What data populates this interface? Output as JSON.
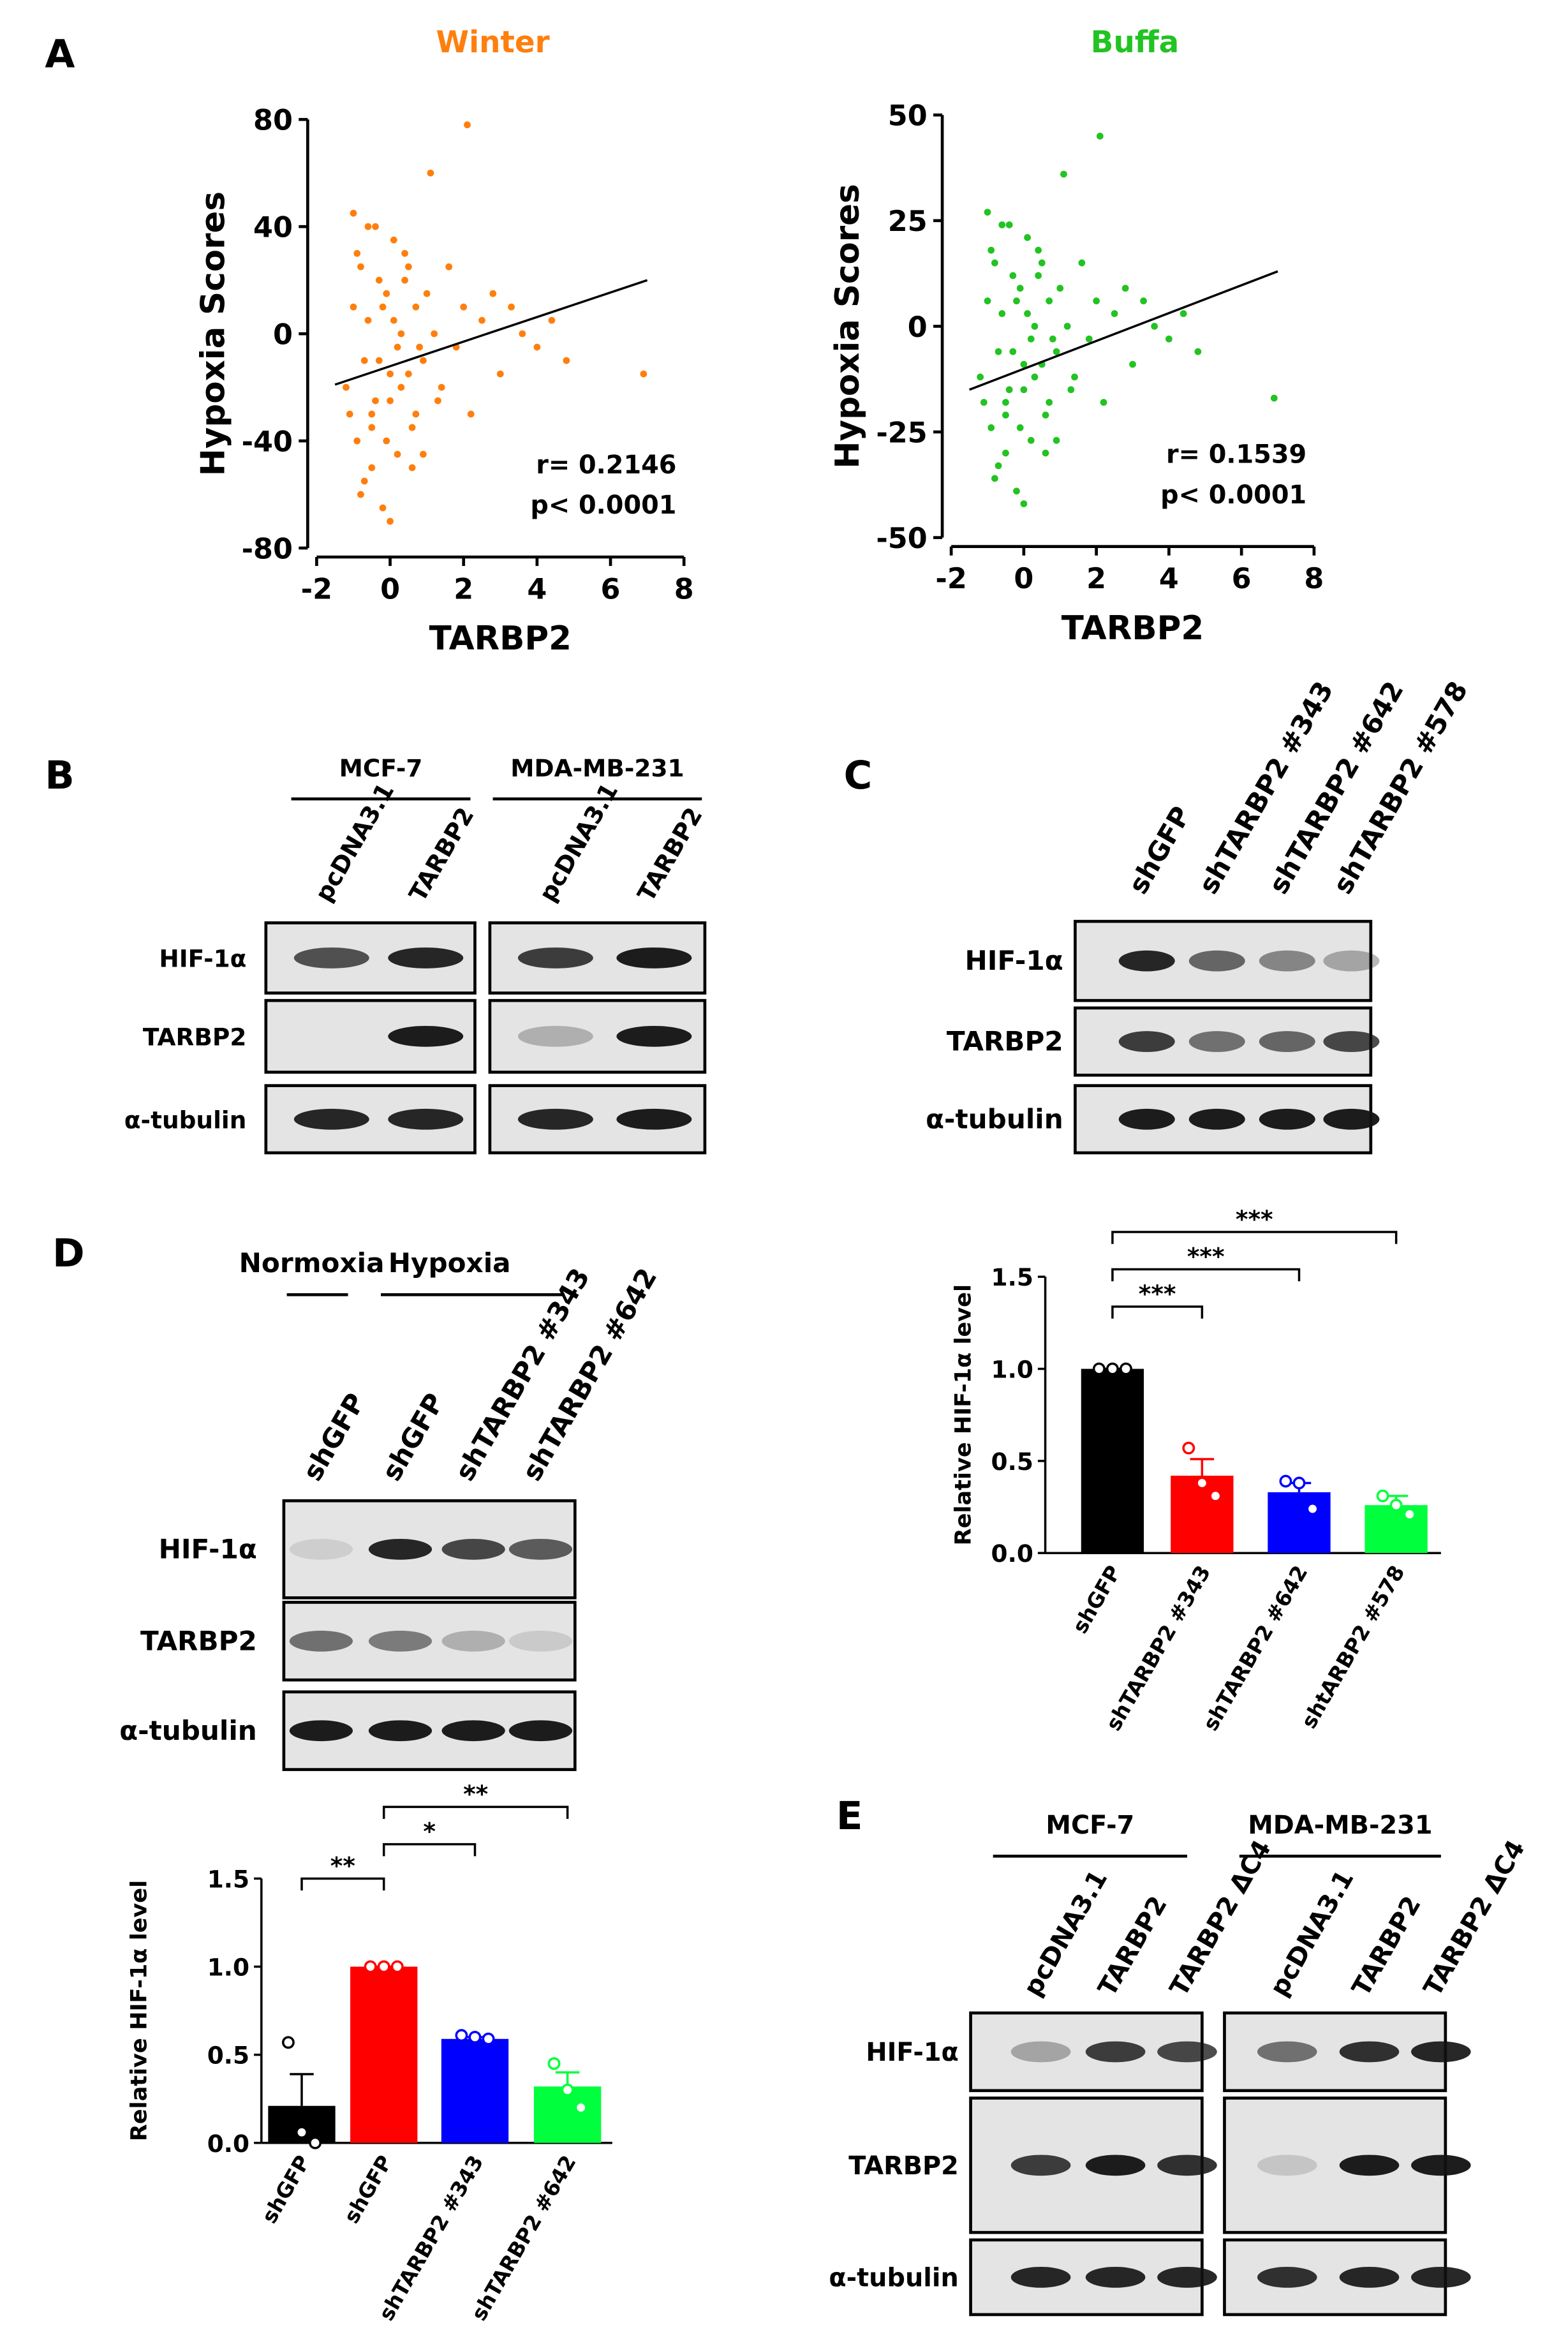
{
  "panel_labels": [
    "A",
    "B",
    "C",
    "D",
    "E"
  ],
  "chart_data": [
    {
      "type": "scatter",
      "title": "Winter",
      "color": "#ff7f0e",
      "xlabel": "TARBP2",
      "ylabel": "Hypoxia Scores",
      "annotations": [
        "r= 0.2146",
        "p< 0.0001"
      ],
      "xlim": [
        -2,
        8
      ],
      "ylim": [
        -80,
        80
      ],
      "xticks": [
        -2,
        0,
        2,
        4,
        6,
        8
      ],
      "yticks": [
        -80,
        -40,
        0,
        40,
        80
      ],
      "x": [
        -1.2,
        -1.0,
        -0.9,
        -0.8,
        -0.7,
        -0.6,
        -0.5,
        -0.4,
        -0.3,
        -0.2,
        -0.1,
        0,
        0.1,
        0.2,
        0.3,
        0.4,
        0.5,
        0.6,
        0.7,
        0.8,
        -1.1,
        -0.9,
        -0.7,
        -0.5,
        -0.3,
        -0.1,
        0.1,
        0.3,
        0.5,
        0.7,
        -0.8,
        -0.6,
        -0.4,
        -0.2,
        0,
        0.2,
        0.4,
        0.9,
        1.0,
        1.2,
        1.4,
        1.6,
        1.8,
        2.0,
        2.2,
        2.5,
        2.8,
        3.0,
        3.3,
        3.6,
        4.0,
        4.4,
        4.8,
        1.1,
        1.3,
        0.9,
        -1.0,
        -0.5,
        0,
        6.9,
        2.1,
        0.6
      ],
      "y": [
        -20,
        10,
        -40,
        25,
        -55,
        5,
        -30,
        40,
        -10,
        -65,
        15,
        -25,
        35,
        -45,
        0,
        20,
        -15,
        -35,
        10,
        -5,
        -30,
        30,
        -10,
        -50,
        20,
        -40,
        5,
        -20,
        25,
        -30,
        -60,
        40,
        -25,
        10,
        -70,
        -5,
        30,
        -10,
        15,
        0,
        -20,
        25,
        -5,
        10,
        -30,
        5,
        15,
        -15,
        10,
        0,
        -5,
        5,
        -10,
        60,
        -25,
        -45,
        45,
        -35,
        -15,
        -15,
        78,
        -50
      ],
      "trendline": {
        "x": [
          -1.5,
          7
        ],
        "y": [
          -19,
          20
        ]
      }
    },
    {
      "type": "scatter",
      "title": "Buffa",
      "color": "#22c322",
      "xlabel": "TARBP2",
      "ylabel": "Hypoxia Scores",
      "annotations": [
        "r= 0.1539",
        "p< 0.0001"
      ],
      "xlim": [
        -2,
        8
      ],
      "ylim": [
        -50,
        50
      ],
      "xticks": [
        -2,
        0,
        2,
        4,
        6,
        8
      ],
      "yticks": [
        -50,
        -25,
        0,
        25,
        50
      ],
      "x": [
        -1.2,
        -1.0,
        -0.9,
        -0.8,
        -0.7,
        -0.6,
        -0.5,
        -0.4,
        -0.3,
        -0.2,
        -0.1,
        0,
        0.1,
        0.2,
        0.3,
        0.4,
        0.5,
        0.6,
        0.7,
        0.8,
        -1.1,
        -0.9,
        -0.7,
        -0.5,
        -0.3,
        -0.1,
        0.1,
        0.3,
        0.5,
        0.7,
        -0.8,
        -0.6,
        -0.4,
        -0.2,
        0,
        0.2,
        0.4,
        0.9,
        1.0,
        1.2,
        1.4,
        1.6,
        1.8,
        2.0,
        2.2,
        2.5,
        2.8,
        3.0,
        3.3,
        3.6,
        4.0,
        4.4,
        4.8,
        1.1,
        1.3,
        0.9,
        -1.0,
        -0.5,
        0,
        6.9,
        2.1,
        0.6
      ],
      "y": [
        -12,
        6,
        -24,
        15,
        -33,
        3,
        -18,
        24,
        -6,
        -39,
        9,
        -15,
        21,
        -27,
        0,
        12,
        -9,
        -21,
        6,
        -3,
        -18,
        18,
        -6,
        -30,
        12,
        -24,
        3,
        -12,
        15,
        -18,
        -36,
        24,
        -15,
        6,
        -42,
        -3,
        18,
        -6,
        9,
        0,
        -12,
        15,
        -3,
        6,
        -18,
        3,
        9,
        -9,
        6,
        0,
        -3,
        3,
        -6,
        36,
        -15,
        -27,
        27,
        -21,
        -9,
        -17,
        45,
        -30
      ],
      "trendline": {
        "x": [
          -1.5,
          7
        ],
        "y": [
          -15,
          13
        ]
      }
    },
    {
      "type": "bar",
      "ylabel": "Relative HIF-1α level",
      "categories": [
        "shGFP",
        "shTARBP2 #343",
        "shTARBP2 #642",
        "shtARBP2 #578"
      ],
      "values": [
        1.0,
        0.42,
        0.33,
        0.26
      ],
      "errors": [
        0,
        0.09,
        0.05,
        0.05
      ],
      "points": [
        [
          1.0,
          1.0,
          1.0
        ],
        [
          0.57,
          0.38,
          0.31
        ],
        [
          0.39,
          0.38,
          0.24
        ],
        [
          0.31,
          0.26,
          0.21
        ]
      ],
      "colors": [
        "#000000",
        "#ff0000",
        "#0000ff",
        "#00ff3c"
      ],
      "ylim": [
        0,
        1.5
      ],
      "yticks": [
        {
          "value": 0,
          "label": "0.0"
        },
        {
          "value": 0.5,
          "label": "0.5"
        },
        {
          "value": 1,
          "label": "1.0"
        },
        {
          "value": 1.5,
          "label": "1.5"
        }
      ],
      "significance": [
        "***",
        "***",
        "***"
      ]
    },
    {
      "type": "bar",
      "ylabel": "Relative HIF-1α level",
      "categories": [
        "shGFP",
        "shGFP",
        "shTARBP2 #343",
        "shTARBP2 #642"
      ],
      "values": [
        0.21,
        1.0,
        0.59,
        0.32
      ],
      "errors": [
        0.18,
        0,
        0.01,
        0.08
      ],
      "points": [
        [
          0.57,
          0.06,
          0.0
        ],
        [
          1.0,
          1.0,
          1.0
        ],
        [
          0.61,
          0.6,
          0.59
        ],
        [
          0.45,
          0.3,
          0.2
        ]
      ],
      "colors": [
        "#000000",
        "#ff0000",
        "#0000ff",
        "#00ff3c"
      ],
      "ylim": [
        0,
        1.5
      ],
      "yticks": [
        {
          "value": 0,
          "label": "0.0"
        },
        {
          "value": 0.5,
          "label": "0.5"
        },
        {
          "value": 1,
          "label": "1.0"
        },
        {
          "value": 1.5,
          "label": "1.5"
        }
      ],
      "significance": [
        "**",
        "*",
        "**"
      ]
    }
  ],
  "blots": {
    "B": {
      "groups": [
        "MCF-7",
        "MDA-MB-231"
      ],
      "lanes": [
        "pcDNA3.1",
        "TARBP2",
        "pcDNA3.1",
        "TARBP2"
      ],
      "rows": [
        "HIF-1α",
        "TARBP2",
        "α-tubulin"
      ]
    },
    "C": {
      "lanes": [
        "shGFP",
        "shTARBP2 #343",
        "shTARBP2 #642",
        "shTARBP2 #578"
      ],
      "rows": [
        "HIF-1α",
        "TARBP2",
        "α-tubulin"
      ]
    },
    "D": {
      "groups": [
        "Normoxia",
        "Hypoxia"
      ],
      "lanes": [
        "shGFP",
        "shGFP",
        "shTARBP2 #343",
        "shTARBP2 #642"
      ],
      "rows": [
        "HIF-1α",
        "TARBP2",
        "α-tubulin"
      ]
    },
    "E": {
      "groups": [
        "MCF-7",
        "MDA-MB-231"
      ],
      "lanes": [
        "pcDNA3.1",
        "TARBP2",
        "TARBP2 ΔC4",
        "pcDNA3.1",
        "TARBP2",
        "TARBP2 ΔC4"
      ],
      "rows": [
        "HIF-1α",
        "TARBP2",
        "α-tubulin"
      ]
    }
  }
}
